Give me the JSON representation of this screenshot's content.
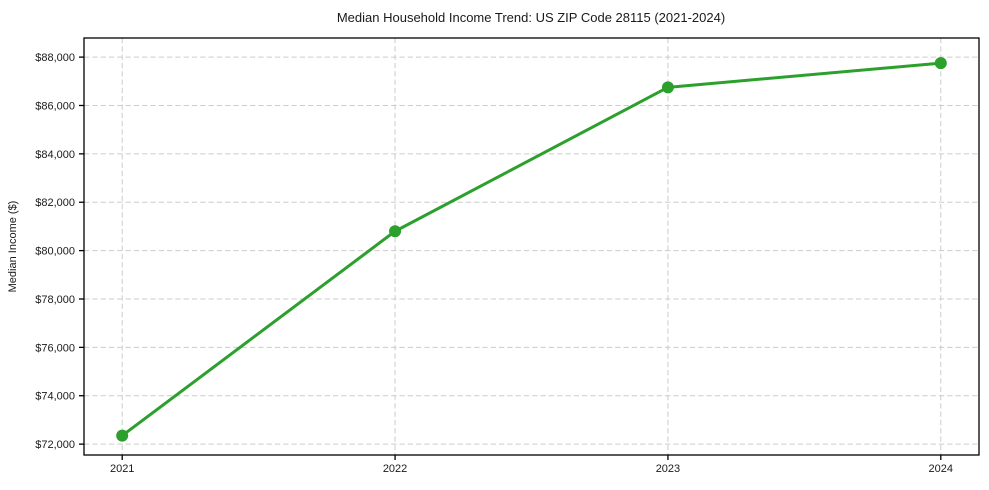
{
  "chart_data": {
    "type": "line",
    "title": "Median Household Income Trend: US ZIP Code 28115 (2021-2024)",
    "xlabel": "",
    "ylabel": "Median Income ($)",
    "x": [
      2021,
      2022,
      2023,
      2024
    ],
    "x_tick_labels": [
      "2021",
      "2022",
      "2023",
      "2024"
    ],
    "values": [
      72350,
      80800,
      86750,
      87750
    ],
    "y_ticks": [
      72000,
      74000,
      76000,
      78000,
      80000,
      82000,
      84000,
      86000,
      88000
    ],
    "y_tick_labels": [
      "$72,000",
      "$74,000",
      "$76,000",
      "$78,000",
      "$80,000",
      "$82,000",
      "$84,000",
      "$86,000",
      "$88,000"
    ],
    "xlim": [
      2020.86,
      2024.14
    ],
    "ylim": [
      71550,
      88790
    ],
    "grid": true,
    "grid_style": "dashed",
    "legend": "none",
    "marker": "circle",
    "colors": {
      "line": "#2ca02c",
      "marker": "#2ca02c",
      "grid": "#cccccc",
      "spine": "#000000",
      "text": "#1a1a1a",
      "background": "#ffffff"
    }
  }
}
